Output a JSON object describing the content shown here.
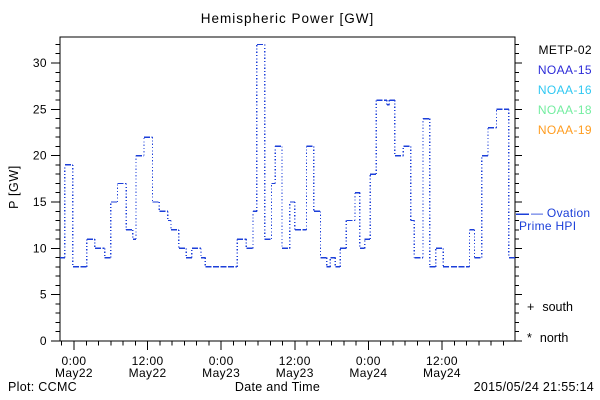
{
  "title": "Hemispheric Power [GW]",
  "y_axis_label": "P [GW]",
  "x_axis_label": "Date and Time",
  "footer": {
    "left": "Plot: CCMC",
    "right": "2015/05/24 21:55:14"
  },
  "legend": {
    "satellites": [
      {
        "label": "METP-02",
        "color": "#000000"
      },
      {
        "label": "NOAA-15",
        "color": "#2b2bd9"
      },
      {
        "label": "NOAA-16",
        "color": "#2fc8f2"
      },
      {
        "label": "NOAA-18",
        "color": "#73eda0"
      },
      {
        "label": "NOAA-19",
        "color": "#ff9c1e"
      }
    ],
    "ovation": {
      "line1": "— Ovation",
      "line2": "Prime HPI",
      "color": "#1c3fd9"
    },
    "south": {
      "symbol": "+",
      "label": "south"
    },
    "north": {
      "symbol": "*",
      "label": "north"
    }
  },
  "chart_data": {
    "type": "line",
    "style": "stepped line, solid horizontal dashes with dotted vertical connectors",
    "color": "#1c3fd9",
    "title": "Hemispheric Power [GW]",
    "xlabel": "Date and Time",
    "ylabel": "P [GW]",
    "ylim": [
      0,
      32.7
    ],
    "y_major_ticks": [
      0,
      5,
      10,
      15,
      20,
      25,
      30
    ],
    "y_minor_step": 1,
    "x_unit": "hours from 2015-05-22 00:00",
    "xlim": [
      -2.3,
      71.9
    ],
    "x_minor_step_hours": 2,
    "x_major_ticks": [
      {
        "hour": 0,
        "time": "0:00",
        "date": "May22"
      },
      {
        "hour": 12,
        "time": "12:00",
        "date": "May22"
      },
      {
        "hour": 24,
        "time": "0:00",
        "date": "May23"
      },
      {
        "hour": 36,
        "time": "12:00",
        "date": "May23"
      },
      {
        "hour": 48,
        "time": "0:00",
        "date": "May24"
      },
      {
        "hour": 60,
        "time": "12:00",
        "date": "May24"
      }
    ],
    "grid": false,
    "legend_position": "right",
    "steps": [
      [
        -2.3,
        9
      ],
      [
        -1.5,
        19
      ],
      [
        -0.2,
        8
      ],
      [
        2.1,
        11
      ],
      [
        3.4,
        10
      ],
      [
        5.0,
        9
      ],
      [
        6.0,
        15
      ],
      [
        7.1,
        17
      ],
      [
        8.5,
        12
      ],
      [
        9.6,
        11
      ],
      [
        10.1,
        20
      ],
      [
        11.4,
        22
      ],
      [
        12.8,
        15
      ],
      [
        13.9,
        14
      ],
      [
        15.3,
        13
      ],
      [
        15.8,
        12
      ],
      [
        17.1,
        10
      ],
      [
        18.3,
        9
      ],
      [
        19.2,
        10
      ],
      [
        20.7,
        9
      ],
      [
        21.4,
        8
      ],
      [
        26.6,
        11
      ],
      [
        28.1,
        10
      ],
      [
        29.2,
        14
      ],
      [
        29.8,
        32
      ],
      [
        31.1,
        11
      ],
      [
        32.2,
        17
      ],
      [
        32.8,
        21
      ],
      [
        33.9,
        10
      ],
      [
        35.2,
        15
      ],
      [
        36.0,
        12
      ],
      [
        37.9,
        21
      ],
      [
        39.1,
        14
      ],
      [
        40.2,
        9
      ],
      [
        41.2,
        8
      ],
      [
        41.8,
        9
      ],
      [
        42.6,
        8
      ],
      [
        43.4,
        10
      ],
      [
        44.4,
        13
      ],
      [
        45.8,
        16
      ],
      [
        46.6,
        10
      ],
      [
        47.4,
        11
      ],
      [
        48.3,
        18
      ],
      [
        49.3,
        26
      ],
      [
        51.0,
        25.5
      ],
      [
        51.4,
        26
      ],
      [
        52.3,
        20
      ],
      [
        53.7,
        21
      ],
      [
        54.9,
        13
      ],
      [
        55.5,
        9
      ],
      [
        56.9,
        24
      ],
      [
        58.0,
        8
      ],
      [
        59.0,
        10
      ],
      [
        60.2,
        8
      ],
      [
        64.5,
        12
      ],
      [
        65.3,
        9
      ],
      [
        66.5,
        20
      ],
      [
        67.5,
        23
      ],
      [
        68.9,
        25
      ],
      [
        70.9,
        9
      ]
    ],
    "end_hour": 71.9,
    "ovation_marker_value": 13.7
  }
}
